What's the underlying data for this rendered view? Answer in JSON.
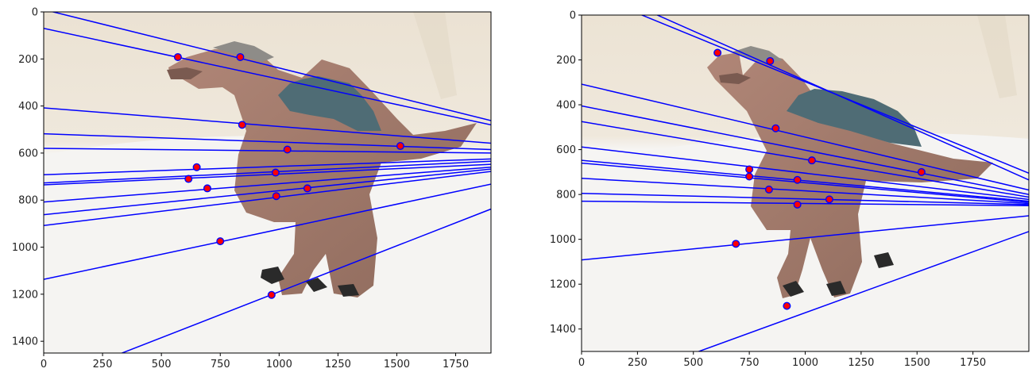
{
  "figure": {
    "colors": {
      "epiline": "#0000ff",
      "point_fill": "#ff0000",
      "point_edge": "#0000ff",
      "photo_background_top": "#ece4d6",
      "photo_background_bottom": "#f4f3f1",
      "dinosaur_body": "#a57a6a",
      "dinosaur_sail": "#4d6a73"
    }
  },
  "chart_data": [
    {
      "type": "scatter",
      "name": "left-image",
      "background": "photo",
      "xlim": [
        0,
        1900
      ],
      "ylim": [
        1450,
        0
      ],
      "xticks": [
        0,
        250,
        500,
        750,
        1000,
        1250,
        1500,
        1750
      ],
      "yticks": [
        0,
        200,
        400,
        600,
        800,
        1000,
        1200,
        1400
      ],
      "grid": false,
      "points": [
        {
          "x": 570,
          "y": 192
        },
        {
          "x": 835,
          "y": 192
        },
        {
          "x": 843,
          "y": 480
        },
        {
          "x": 1515,
          "y": 570
        },
        {
          "x": 1035,
          "y": 585
        },
        {
          "x": 650,
          "y": 660
        },
        {
          "x": 985,
          "y": 683
        },
        {
          "x": 615,
          "y": 710
        },
        {
          "x": 695,
          "y": 750
        },
        {
          "x": 1120,
          "y": 750
        },
        {
          "x": 988,
          "y": 783
        },
        {
          "x": 750,
          "y": 975
        },
        {
          "x": 968,
          "y": 1203
        }
      ],
      "lines": [
        {
          "x1": 0,
          "y1": -10,
          "x2": 1900,
          "y2": 462
        },
        {
          "x1": 0,
          "y1": 70,
          "x2": 1900,
          "y2": 480
        },
        {
          "x1": 0,
          "y1": 408,
          "x2": 1900,
          "y2": 558
        },
        {
          "x1": 0,
          "y1": 518,
          "x2": 1900,
          "y2": 585
        },
        {
          "x1": 0,
          "y1": 580,
          "x2": 1900,
          "y2": 600
        },
        {
          "x1": 0,
          "y1": 692,
          "x2": 1900,
          "y2": 625
        },
        {
          "x1": 0,
          "y1": 727,
          "x2": 1900,
          "y2": 635
        },
        {
          "x1": 0,
          "y1": 735,
          "x2": 1900,
          "y2": 648
        },
        {
          "x1": 0,
          "y1": 808,
          "x2": 1900,
          "y2": 660
        },
        {
          "x1": 0,
          "y1": 862,
          "x2": 1900,
          "y2": 668
        },
        {
          "x1": 0,
          "y1": 908,
          "x2": 1900,
          "y2": 678
        },
        {
          "x1": 0,
          "y1": 1137,
          "x2": 1900,
          "y2": 732
        },
        {
          "x1": 0,
          "y1": 1580,
          "x2": 1900,
          "y2": 838
        }
      ]
    },
    {
      "type": "scatter",
      "name": "right-image",
      "background": "photo",
      "xlim": [
        0,
        2000
      ],
      "ylim": [
        1500,
        0
      ],
      "xticks": [
        0,
        250,
        500,
        750,
        1000,
        1250,
        1500,
        1750
      ],
      "yticks": [
        0,
        200,
        400,
        600,
        800,
        1000,
        1200,
        1400
      ],
      "grid": false,
      "points": [
        {
          "x": 608,
          "y": 168
        },
        {
          "x": 843,
          "y": 205
        },
        {
          "x": 868,
          "y": 505
        },
        {
          "x": 1030,
          "y": 648
        },
        {
          "x": 1520,
          "y": 700
        },
        {
          "x": 750,
          "y": 688
        },
        {
          "x": 750,
          "y": 720
        },
        {
          "x": 965,
          "y": 735
        },
        {
          "x": 838,
          "y": 778
        },
        {
          "x": 1108,
          "y": 822
        },
        {
          "x": 965,
          "y": 845
        },
        {
          "x": 690,
          "y": 1020
        },
        {
          "x": 918,
          "y": 1297
        }
      ],
      "lines": [
        {
          "x1": 0,
          "y1": -110,
          "x2": 2000,
          "y2": 705
        },
        {
          "x1": 0,
          "y1": -150,
          "x2": 2000,
          "y2": 735
        },
        {
          "x1": 0,
          "y1": 308,
          "x2": 2000,
          "y2": 780
        },
        {
          "x1": 0,
          "y1": 405,
          "x2": 2000,
          "y2": 800
        },
        {
          "x1": 0,
          "y1": 475,
          "x2": 2000,
          "y2": 812
        },
        {
          "x1": 0,
          "y1": 588,
          "x2": 2000,
          "y2": 822
        },
        {
          "x1": 0,
          "y1": 648,
          "x2": 2000,
          "y2": 830
        },
        {
          "x1": 0,
          "y1": 660,
          "x2": 2000,
          "y2": 835
        },
        {
          "x1": 0,
          "y1": 728,
          "x2": 2000,
          "y2": 840
        },
        {
          "x1": 0,
          "y1": 795,
          "x2": 2000,
          "y2": 845
        },
        {
          "x1": 0,
          "y1": 830,
          "x2": 2000,
          "y2": 850
        },
        {
          "x1": 0,
          "y1": 1092,
          "x2": 2000,
          "y2": 895
        },
        {
          "x1": 0,
          "y1": 1690,
          "x2": 2000,
          "y2": 965
        }
      ]
    }
  ]
}
